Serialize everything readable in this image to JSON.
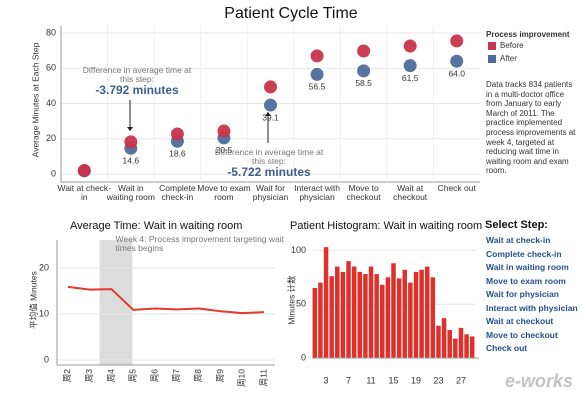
{
  "chart_data": [
    {
      "type": "dot",
      "title": "Patient Cycle Time",
      "y_label": "Average Minutes at Each Step",
      "categories": [
        "Wait at check-in",
        "Wait in waiting room",
        "Complete check-in",
        "Move to exam room",
        "Wait for physician",
        "Interact with physician",
        "Move to checkout",
        "Wait at checkout",
        "Check out"
      ],
      "series": [
        {
          "name": "Before",
          "color": "#c8344a",
          "values": [
            2,
            18.2,
            22.7,
            24.4,
            49.4,
            67,
            69.8,
            72.6,
            75.5
          ]
        },
        {
          "name": "After",
          "color": "#4e6d9c",
          "values": [
            1.8,
            14.6,
            18.6,
            20.5,
            39.1,
            56.5,
            58.5,
            61.5,
            64.0
          ],
          "value_labels": [
            null,
            "14.6",
            "18.6",
            "20.5",
            "39.1",
            "56.5",
            "58.5",
            "61.5",
            "64.0"
          ]
        }
      ],
      "ylim": [
        0,
        80
      ],
      "yticks": [
        0,
        20,
        40,
        60,
        80
      ],
      "grid": true,
      "legend_title": "Process improvement",
      "note": "Data tracks 834 patients in a multi-doctor office from January to early March of 2011. The practice implemented process improvements at week 4, targeted at reducing wait time in waiting room and exam room.",
      "annotations": [
        {
          "text": "Difference in average time at this step:",
          "value_text": "-3.792 minutes"
        },
        {
          "text": "Difference in average time at this step:",
          "value_text": "-5.722 minutes"
        }
      ]
    },
    {
      "type": "line",
      "title": "Average Time: Wait in waiting room",
      "y_label": "平均值 Minutes",
      "categories": [
        "周2",
        "周3",
        "周4",
        "周5",
        "周6",
        "周7",
        "周8",
        "周9",
        "周10",
        "周11"
      ],
      "values": [
        15.9,
        15.3,
        15.4,
        10.9,
        11.2,
        11.0,
        11.2,
        10.6,
        10.2,
        10.4
      ],
      "color": "#e33b2b",
      "ylim": [
        0,
        25
      ],
      "yticks": [
        0,
        10,
        20
      ],
      "grid": true,
      "annotation": "Week 4: Process improvement targeting wait times begins"
    },
    {
      "type": "bar",
      "title": "Patient Histogram: Wait in waiting room",
      "y_label": "Minutes 计数",
      "categories": [
        null,
        null,
        "3",
        null,
        null,
        null,
        "7",
        null,
        null,
        null,
        "11",
        null,
        null,
        null,
        "15",
        null,
        null,
        null,
        "19",
        null,
        null,
        null,
        "23",
        null,
        null,
        null,
        "27",
        null,
        null
      ],
      "values": [
        65,
        70,
        103,
        76,
        85,
        80,
        90,
        85,
        80,
        78,
        85,
        78,
        68,
        75,
        88,
        74,
        82,
        70,
        80,
        82,
        85,
        75,
        30,
        37,
        26,
        18,
        28,
        22,
        20
      ],
      "color": "#e0302a",
      "ylim": [
        0,
        105
      ],
      "yticks": [
        0,
        50,
        100
      ],
      "grid": true
    }
  ],
  "select_step": {
    "title": "Select Step:",
    "items": [
      "Wait at check-in",
      "Complete check-in",
      "Wait in waiting room",
      "Move to exam room",
      "Wait for physician",
      "Interact with physician",
      "Wait at checkout",
      "Move to checkout",
      "Check out"
    ]
  },
  "watermark": "e-works"
}
